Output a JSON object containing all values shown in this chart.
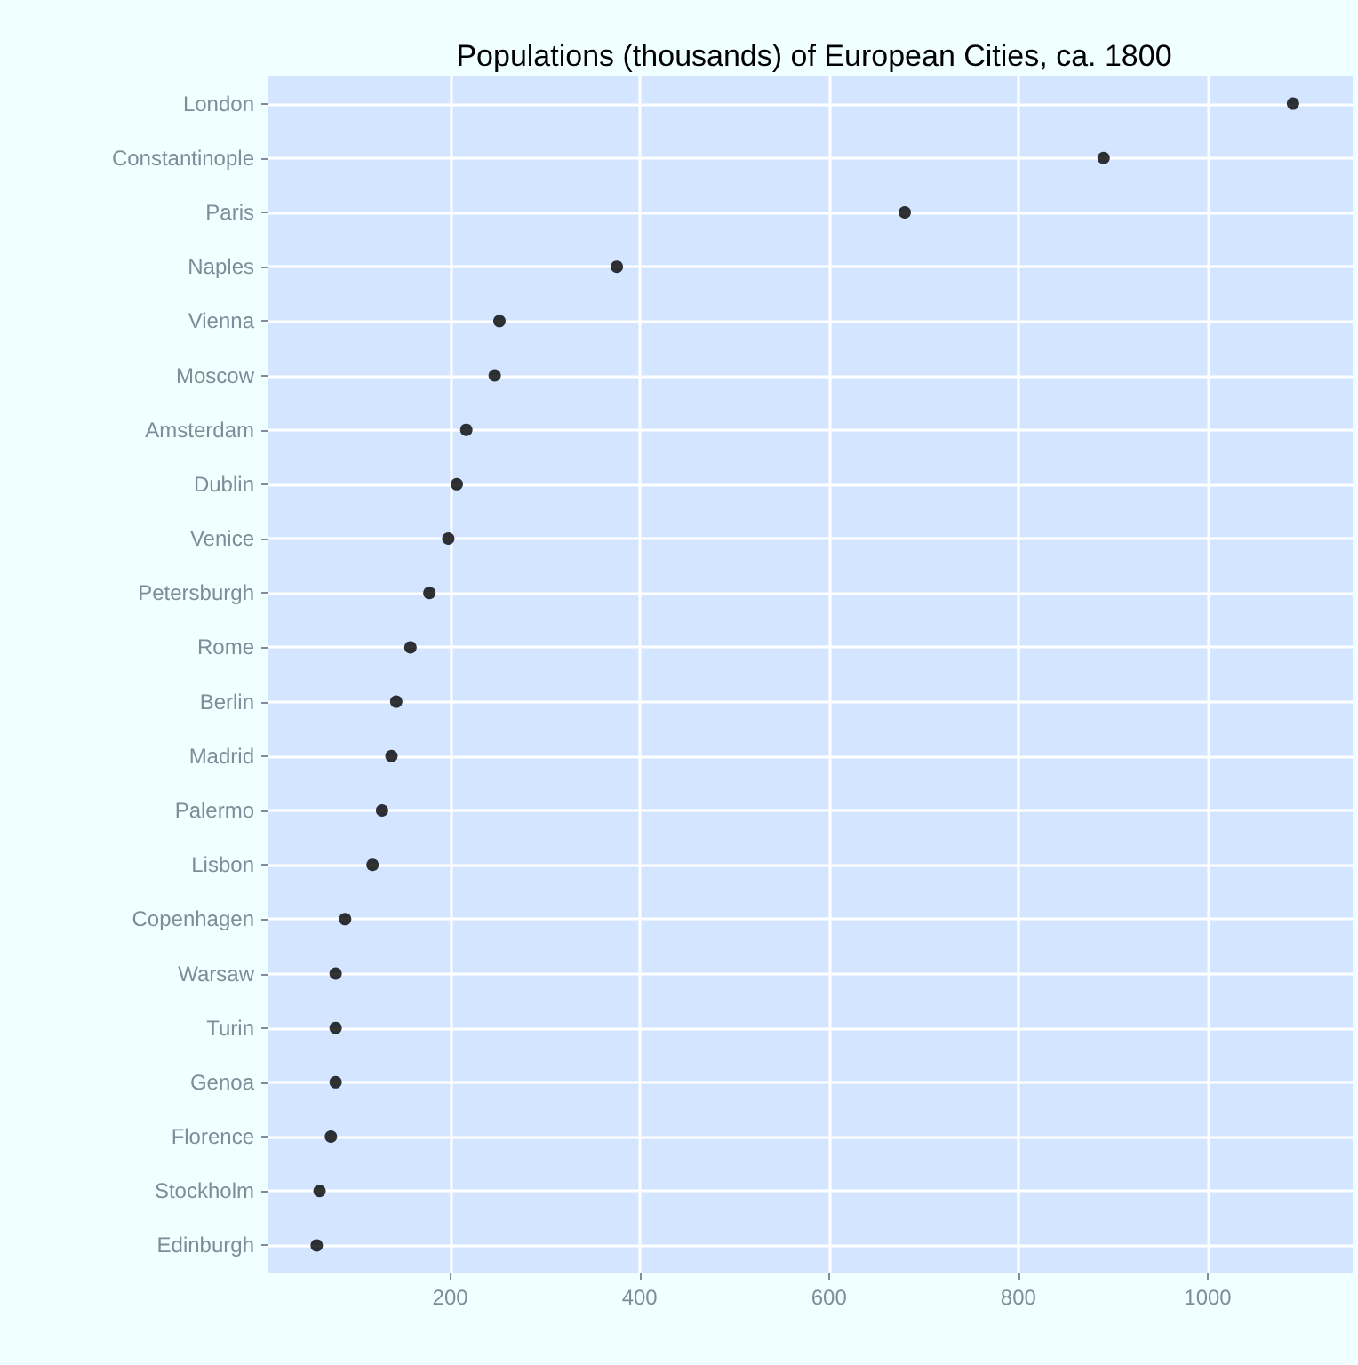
{
  "chart_data": {
    "type": "scatter",
    "title": "Populations (thousands) of European Cities, ca. 1800",
    "orientation": "horizontal",
    "categories": [
      "London",
      "Constantinople",
      "Paris",
      "Naples",
      "Vienna",
      "Moscow",
      "Amsterdam",
      "Dublin",
      "Venice",
      "Petersburgh",
      "Rome",
      "Berlin",
      "Madrid",
      "Palermo",
      "Lisbon",
      "Copenhagen",
      "Warsaw",
      "Turin",
      "Genoa",
      "Florence",
      "Stockholm",
      "Edinburgh"
    ],
    "values": [
      1090,
      890,
      680,
      376,
      252,
      247,
      217,
      207,
      198,
      178,
      158,
      143,
      138,
      128,
      118,
      89,
      79,
      79,
      79,
      74,
      62,
      59
    ],
    "color": "#000000",
    "marker": "circle",
    "xlim": [
      8,
      1153
    ],
    "xticks": [
      200,
      400,
      600,
      800,
      1000
    ],
    "grid": true
  }
}
